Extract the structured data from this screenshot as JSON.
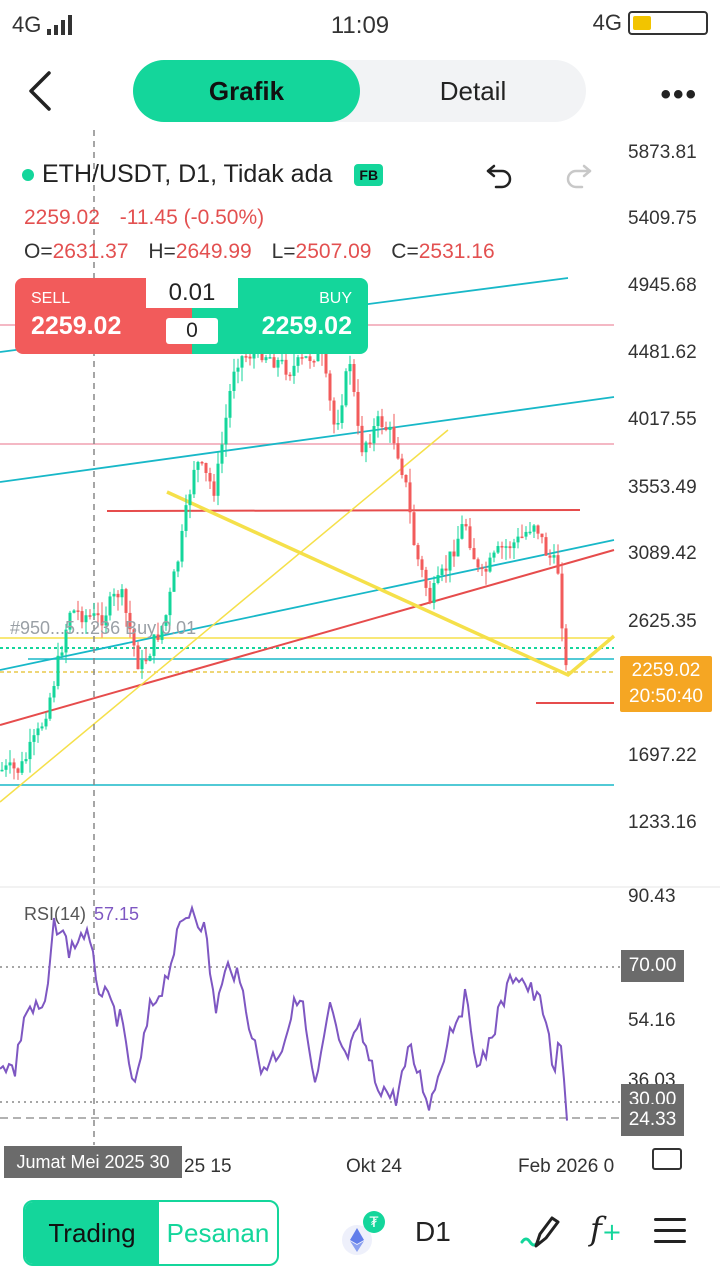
{
  "status_bar": {
    "left_signal": "4G",
    "time": "11:09",
    "right_signal": "4G"
  },
  "nav": {
    "tab_chart": "Grafik",
    "tab_detail": "Detail"
  },
  "chart": {
    "symbol_line": "ETH/USDT, D1, Tidak ada",
    "badge": "FB",
    "last_price": "2259.02",
    "change": "-11.45 (-0.50%)",
    "ohlc": {
      "o_label": "O=",
      "o": "2631.37",
      "h_label": "H=",
      "h": "2649.99",
      "l_label": "L=",
      "l": "2507.09",
      "c_label": "C=",
      "c": "2531.16"
    },
    "price_axis": [
      "5873.81",
      "5409.75",
      "4945.68",
      "4481.62",
      "4017.55",
      "3553.49",
      "3089.42",
      "2625.35",
      "1697.22",
      "1233.16"
    ],
    "price_tag": {
      "price": "2259.02",
      "countdown": "20:50:40"
    },
    "position_label": "#950...5...236 Buy 0.01",
    "colors": {
      "up": "#14d69b",
      "down": "#f25b5b",
      "trend_cyan": "#18b8c8",
      "trend_yellow": "#f5e04a",
      "rsi": "#7e57c2",
      "tag_orange": "#f5a623"
    }
  },
  "trade_panel": {
    "sell_label": "SELL",
    "sell_price": "2259.02",
    "buy_label": "BUY",
    "buy_price": "2259.02",
    "lot": "0.01",
    "qty": "0"
  },
  "rsi": {
    "label": "RSI(14)",
    "value": "57.15",
    "axis": [
      "90.43",
      "54.16",
      "36.03"
    ],
    "tag_high": "70.00",
    "tag_low": "30.00",
    "tag_current": "24.33"
  },
  "x_axis": {
    "cursor_date": "Jumat Mei 2025 30",
    "labels": [
      "25 15",
      "Okt 24",
      "Feb 2026 0"
    ]
  },
  "bottom_bar": {
    "trading": "Trading",
    "orders": "Pesanan",
    "timeframe": "D1"
  }
}
